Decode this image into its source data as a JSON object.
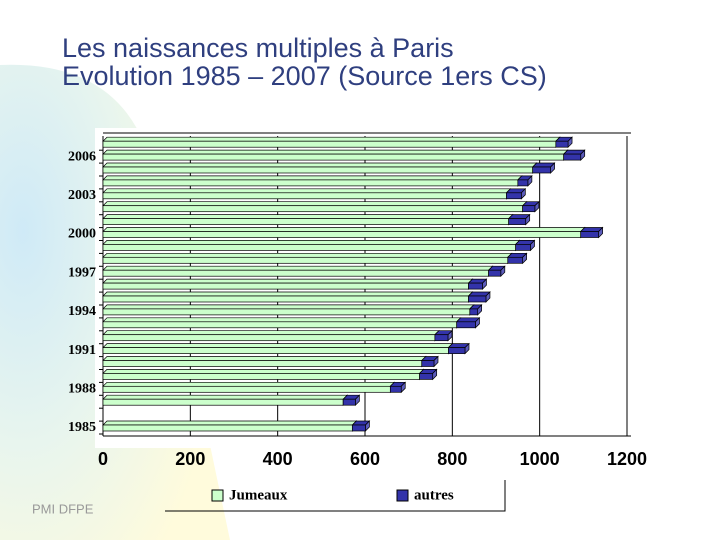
{
  "footer": "PMI DFPE",
  "chart_data": {
    "type": "bar",
    "orientation": "horizontal",
    "stacked": true,
    "title": "Les naissances multiples à Paris",
    "subtitle": "Evolution 1985 – 2007 (Source 1ers CS)",
    "categories": [
      "1985",
      null,
      null,
      "1988",
      null,
      null,
      "1991",
      null,
      null,
      "1994",
      null,
      null,
      "1997",
      null,
      null,
      "2000",
      null,
      null,
      "2003",
      null,
      null,
      "2006",
      null
    ],
    "series": [
      {
        "name": "Jumeaux",
        "color": "#ccffcc",
        "values": [
          571,
          null,
          550,
          658,
          725,
          730,
          791,
          760,
          810,
          840,
          837,
          837,
          883,
          927,
          945,
          1094,
          929,
          961,
          924,
          950,
          984,
          1055,
          1037
        ]
      },
      {
        "name": "autres",
        "color": "#3333aa",
        "values": [
          30,
          null,
          28,
          25,
          30,
          28,
          38,
          30,
          43,
          18,
          40,
          32,
          28,
          34,
          34,
          41,
          39,
          28,
          34,
          23,
          41,
          39,
          28
        ]
      }
    ],
    "xlim": [
      0,
      1200
    ],
    "xticks": [
      0,
      200,
      400,
      600,
      800,
      1000,
      1200
    ],
    "grid": true,
    "legend": "bottom"
  }
}
